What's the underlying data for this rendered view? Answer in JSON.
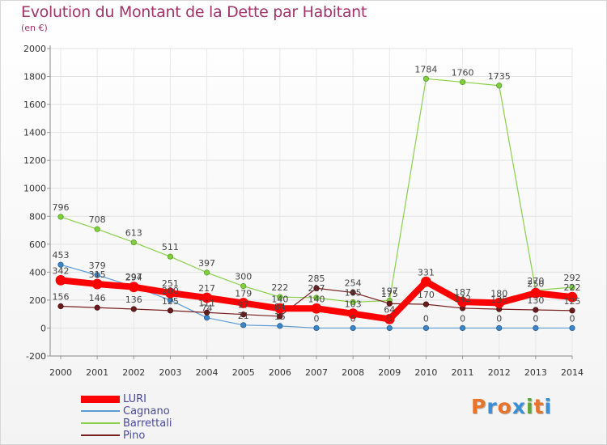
{
  "title": "Evolution du Montant de la Dette par Habitant",
  "subtitle": "(en €)",
  "logo": {
    "text": "Proxiti",
    "letters": [
      {
        "char": "P",
        "color": "#e8732a"
      },
      {
        "char": "r",
        "color": "#3a8fd6"
      },
      {
        "char": "o",
        "color": "#e8732a"
      },
      {
        "char": "x",
        "color": "#3a8fd6"
      },
      {
        "char": "i",
        "color": "#5aa83a"
      },
      {
        "char": "t",
        "color": "#e8732a"
      },
      {
        "char": "i",
        "color": "#3a8fd6"
      }
    ]
  },
  "chart_data": {
    "type": "line",
    "title": "Evolution du Montant de la Dette par Habitant",
    "ylabel": "(en €)",
    "xlabel": "",
    "ylim": [
      -200,
      2000
    ],
    "yticks": [
      -200,
      0,
      200,
      400,
      600,
      800,
      1000,
      1200,
      1400,
      1600,
      1800,
      2000
    ],
    "categories": [
      "2000",
      "2001",
      "2002",
      "2003",
      "2004",
      "2005",
      "2006",
      "2007",
      "2008",
      "2009",
      "2010",
      "2011",
      "2012",
      "2013",
      "2014"
    ],
    "legend_position": "bottom-left",
    "series": [
      {
        "name": "LURI",
        "color": "#ff0000",
        "values": [
          342,
          315,
          294,
          251,
          217,
          179,
          140,
          140,
          103,
          64,
          331,
          187,
          180,
          250,
          222
        ]
      },
      {
        "name": "Cagnano",
        "color": "#5b9bd5",
        "values": [
          453,
          379,
          297,
          200,
          74,
          21,
          15,
          0,
          0,
          0,
          0,
          0,
          0,
          0,
          0
        ]
      },
      {
        "name": "Barrettali",
        "color": "#8ad04a",
        "values": [
          796,
          708,
          613,
          511,
          397,
          300,
          222,
          217,
          185,
          197,
          1784,
          1760,
          1735,
          270,
          292
        ]
      },
      {
        "name": "Pino",
        "color": "#7a1f1f",
        "values": [
          156,
          146,
          136,
          125,
          111,
          97,
          84,
          285,
          254,
          175,
          170,
          142,
          135,
          130,
          125
        ]
      }
    ]
  }
}
